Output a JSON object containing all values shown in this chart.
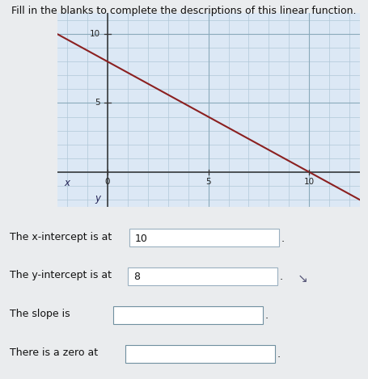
{
  "title": "Fill in the blanks to complete the descriptions of this linear function.",
  "title_fontsize": 9.0,
  "bg_color": "#eaecee",
  "plot_bg_color": "#dce8f5",
  "grid_color": "#b0c8d8",
  "grid_major_color": "#8aaabb",
  "line_color": "#8b2020",
  "line_x_start": -2.5,
  "line_x_end": 12.5,
  "x_intercept": 10,
  "y_intercept": 8,
  "slope": -0.8,
  "xlim": [
    -2.5,
    12.5
  ],
  "ylim": [
    -2.5,
    11.5
  ],
  "xtick_labels": [
    "0",
    "5",
    "10"
  ],
  "xtick_vals": [
    0,
    5,
    10
  ],
  "ytick_labels": [
    "5",
    "10"
  ],
  "ytick_vals": [
    5,
    10
  ],
  "axis_x_label": "x",
  "axis_y_label": "y",
  "line_items": [
    {
      "label": "The x-intercept is at",
      "filled_text": "10"
    },
    {
      "label": "The y-intercept is at",
      "filled_text": "8"
    },
    {
      "label": "The slope is",
      "filled_text": ""
    },
    {
      "label": "There is a zero at",
      "filled_text": ""
    }
  ],
  "box_border_color_filled": "#9ab0c0",
  "box_border_color_empty": "#7090a0",
  "cursor_color": "#555577"
}
